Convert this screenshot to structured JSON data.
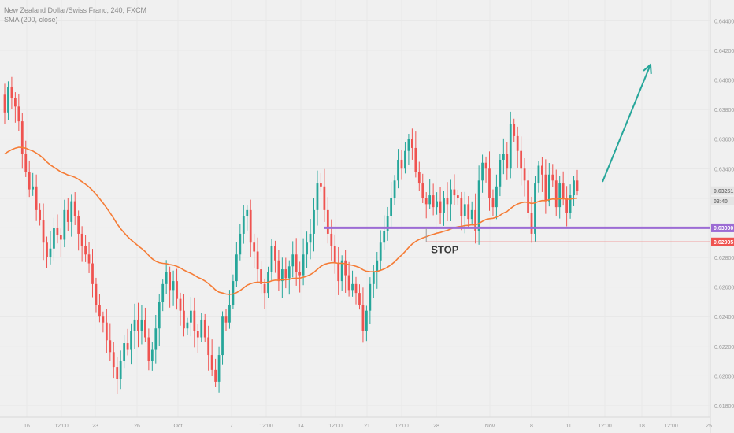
{
  "chart_data": {
    "type": "candlestick",
    "title": "New Zealand Dollar/Swiss Franc, 240, FXCM",
    "indicator": "SMA (200, close)",
    "y_ticks": [
      "0.64400",
      "0.64200",
      "0.64000",
      "0.63800",
      "0.63600",
      "0.63400",
      "0.63200",
      "0.63000",
      "0.62800",
      "0.62600",
      "0.62400",
      "0.62200",
      "0.62000",
      "0.61800"
    ],
    "x_ticks": [
      "16",
      "12:00",
      "23",
      "26",
      "Oct",
      "7",
      "12:00",
      "14",
      "12:00",
      "21",
      "12:00",
      "28",
      "Nov",
      "8",
      "11",
      "12:00",
      "18",
      "12:00",
      "25"
    ],
    "last_price": "0.63251",
    "countdown": "03:40",
    "support_level": "0.63000",
    "stop_level": "0.62905",
    "stop_label": "STOP",
    "colors": {
      "up": "#26a69a",
      "down": "#ef5350",
      "sma": "#f57c36",
      "support": "#9c6cd4",
      "stop": "#ef5350",
      "arrow": "#26a69a"
    },
    "closes": [
      0.6378,
      0.6395,
      0.6388,
      0.6382,
      0.6372,
      0.635,
      0.6338,
      0.6326,
      0.6328,
      0.6312,
      0.6305,
      0.629,
      0.628,
      0.6286,
      0.63,
      0.6295,
      0.6292,
      0.6312,
      0.6304,
      0.6318,
      0.6308,
      0.6296,
      0.6288,
      0.6282,
      0.6276,
      0.6262,
      0.6248,
      0.624,
      0.6236,
      0.6224,
      0.6216,
      0.6206,
      0.6198,
      0.621,
      0.6222,
      0.6218,
      0.623,
      0.6238,
      0.623,
      0.6238,
      0.6226,
      0.621,
      0.6218,
      0.6232,
      0.625,
      0.6262,
      0.627,
      0.6258,
      0.6264,
      0.6252,
      0.6244,
      0.6232,
      0.6236,
      0.6244,
      0.623,
      0.6226,
      0.6238,
      0.6226,
      0.6214,
      0.6204,
      0.6196,
      0.6214,
      0.624,
      0.6236,
      0.6248,
      0.6264,
      0.6282,
      0.6296,
      0.6308,
      0.6312,
      0.629,
      0.6284,
      0.6272,
      0.6262,
      0.6256,
      0.627,
      0.6288,
      0.6278,
      0.6264,
      0.6272,
      0.6266,
      0.6274,
      0.6282,
      0.627,
      0.6268,
      0.6282,
      0.629,
      0.6296,
      0.6312,
      0.633,
      0.6328,
      0.6312,
      0.6296,
      0.6288,
      0.6276,
      0.6264,
      0.6278,
      0.6268,
      0.6258,
      0.6262,
      0.6256,
      0.6248,
      0.623,
      0.6244,
      0.6262,
      0.627,
      0.6278,
      0.629,
      0.6298,
      0.6308,
      0.632,
      0.6332,
      0.6346,
      0.634,
      0.6352,
      0.636,
      0.6354,
      0.6338,
      0.633,
      0.632,
      0.6316,
      0.6322,
      0.6314,
      0.6318,
      0.631,
      0.632,
      0.6316,
      0.6326,
      0.6322,
      0.632,
      0.6308,
      0.6316,
      0.6306,
      0.6312,
      0.6298,
      0.6332,
      0.6344,
      0.634,
      0.632,
      0.6314,
      0.6328,
      0.6346,
      0.635,
      0.634,
      0.637,
      0.6362,
      0.6352,
      0.634,
      0.6332,
      0.631,
      0.6296,
      0.633,
      0.6342,
      0.6336,
      0.6318,
      0.6336,
      0.6332,
      0.6314,
      0.633,
      0.632,
      0.631,
      0.6322,
      0.6332,
      0.6325
    ]
  }
}
